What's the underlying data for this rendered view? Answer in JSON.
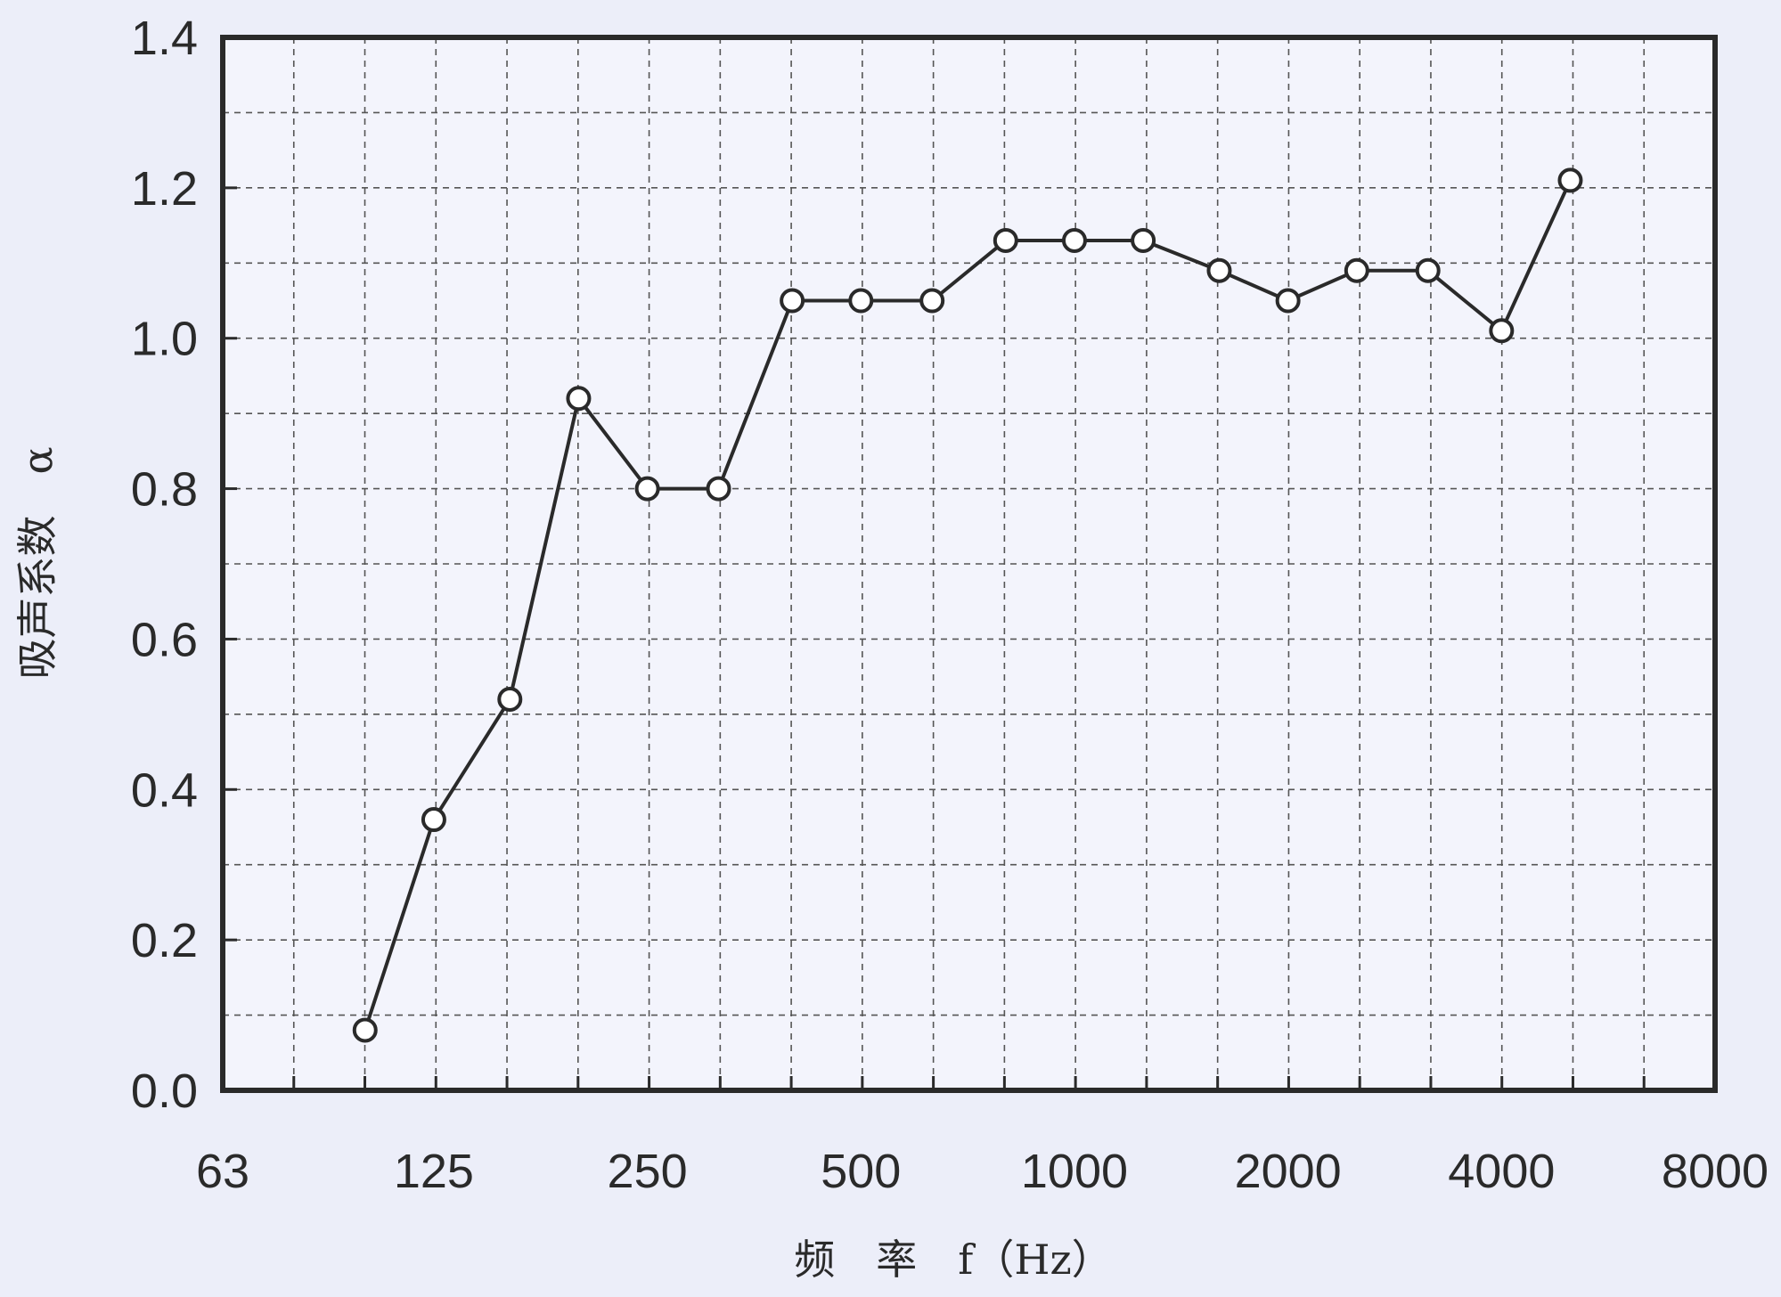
{
  "chart_data": {
    "type": "line",
    "title": "",
    "xlabel": "频　率　f（Hz）",
    "ylabel": "吸声系数　α",
    "x_scale": "log2",
    "x_ticks": [
      "63",
      "125",
      "250",
      "500",
      "1000",
      "2000",
      "4000",
      "8000"
    ],
    "xlim": [
      63,
      8000
    ],
    "y_ticks": [
      "0.0",
      "0.2",
      "0.4",
      "0.6",
      "0.8",
      "1.0",
      "1.2",
      "1.4"
    ],
    "ylim": [
      0,
      1.4
    ],
    "grid": "dashed, every 1/3 octave and every 0.1",
    "series": [
      {
        "marker": "open-circle",
        "color": "#2a2a2a",
        "points": [
          {
            "x": 100,
            "y": 0.08
          },
          {
            "x": 125,
            "y": 0.36
          },
          {
            "x": 160,
            "y": 0.52
          },
          {
            "x": 200,
            "y": 0.92
          },
          {
            "x": 250,
            "y": 0.8
          },
          {
            "x": 315,
            "y": 0.8
          },
          {
            "x": 400,
            "y": 1.05
          },
          {
            "x": 500,
            "y": 1.05
          },
          {
            "x": 630,
            "y": 1.05
          },
          {
            "x": 800,
            "y": 1.13
          },
          {
            "x": 1000,
            "y": 1.13
          },
          {
            "x": 1250,
            "y": 1.13
          },
          {
            "x": 1600,
            "y": 1.09
          },
          {
            "x": 2000,
            "y": 1.05
          },
          {
            "x": 2500,
            "y": 1.09
          },
          {
            "x": 3150,
            "y": 1.09
          },
          {
            "x": 4000,
            "y": 1.01
          },
          {
            "x": 5000,
            "y": 1.21
          }
        ]
      }
    ]
  },
  "colors": {
    "background": "#eceef9",
    "plot_background": "#f3f4fc",
    "ink": "#2a2a2a",
    "grid": "#555555"
  }
}
